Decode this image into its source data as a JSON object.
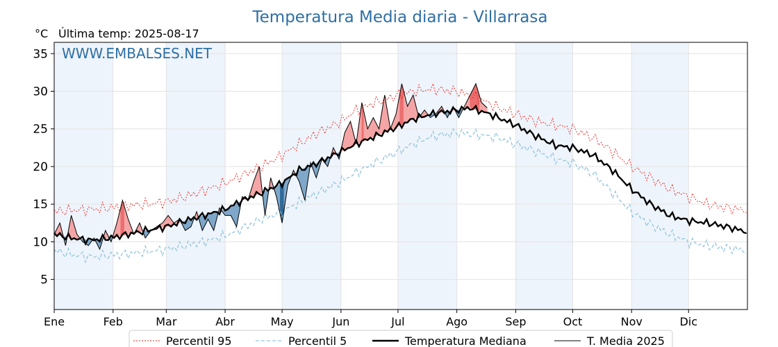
{
  "chart_data": {
    "type": "line",
    "title": "Temperatura Media diaria - Villarrasa",
    "unit": "°C",
    "subtitle": "Última temp: 2025-08-17",
    "watermark": "WWW.EMBALSES.NET",
    "ylim": [
      1,
      36.5
    ],
    "yticks": [
      5,
      10,
      15,
      20,
      25,
      30,
      35
    ],
    "x_range_days": [
      1,
      366
    ],
    "grid": true,
    "legend_position": "bottom-center",
    "months": [
      {
        "label": "Ene",
        "day": 1
      },
      {
        "label": "Feb",
        "day": 32
      },
      {
        "label": "Mar",
        "day": 60
      },
      {
        "label": "Abr",
        "day": 91
      },
      {
        "label": "May",
        "day": 121
      },
      {
        "label": "Jun",
        "day": 152
      },
      {
        "label": "Jul",
        "day": 182
      },
      {
        "label": "Ago",
        "day": 213
      },
      {
        "label": "Sep",
        "day": 244
      },
      {
        "label": "Oct",
        "day": 274
      },
      {
        "label": "Nov",
        "day": 305
      },
      {
        "label": "Dic",
        "day": 335
      }
    ],
    "colors": {
      "p95": "#e8211d",
      "p5": "#93c6dd",
      "median": "#000000",
      "current": "#000000",
      "above_fill": "#f4a5a5",
      "above_fill_strong": "#ec6e6e",
      "below_fill": "#7fa7c9",
      "below_fill_strong": "#2f6a97",
      "title": "#2e6fa4",
      "band": "#eef4fb"
    },
    "series": [
      {
        "name": "Percentil 95",
        "key": "p95",
        "points": [
          [
            1,
            14.0
          ],
          [
            10,
            14.2
          ],
          [
            20,
            14.3
          ],
          [
            30,
            14.5
          ],
          [
            40,
            14.8
          ],
          [
            50,
            15.0
          ],
          [
            60,
            15.3
          ],
          [
            70,
            16.0
          ],
          [
            80,
            16.8
          ],
          [
            91,
            17.8
          ],
          [
            100,
            18.8
          ],
          [
            110,
            20.0
          ],
          [
            121,
            21.5
          ],
          [
            130,
            23.0
          ],
          [
            140,
            24.5
          ],
          [
            152,
            26.0
          ],
          [
            160,
            27.5
          ],
          [
            170,
            28.5
          ],
          [
            182,
            29.5
          ],
          [
            190,
            30.0
          ],
          [
            200,
            30.3
          ],
          [
            213,
            30.0
          ],
          [
            225,
            29.0
          ],
          [
            235,
            27.8
          ],
          [
            244,
            27.0
          ],
          [
            255,
            26.0
          ],
          [
            265,
            25.5
          ],
          [
            274,
            25.0
          ],
          [
            285,
            23.8
          ],
          [
            295,
            22.0
          ],
          [
            305,
            20.0
          ],
          [
            315,
            18.5
          ],
          [
            325,
            17.0
          ],
          [
            335,
            16.0
          ],
          [
            345,
            15.0
          ],
          [
            355,
            14.5
          ],
          [
            366,
            14.2
          ]
        ]
      },
      {
        "name": "Percentil 5",
        "key": "p5",
        "points": [
          [
            1,
            8.8
          ],
          [
            10,
            8.3
          ],
          [
            20,
            8.0
          ],
          [
            30,
            8.2
          ],
          [
            40,
            8.4
          ],
          [
            50,
            8.7
          ],
          [
            60,
            9.0
          ],
          [
            70,
            9.5
          ],
          [
            80,
            10.0
          ],
          [
            91,
            10.8
          ],
          [
            100,
            11.8
          ],
          [
            110,
            13.0
          ],
          [
            121,
            14.0
          ],
          [
            130,
            15.2
          ],
          [
            140,
            16.5
          ],
          [
            152,
            18.0
          ],
          [
            160,
            19.2
          ],
          [
            170,
            20.5
          ],
          [
            182,
            22.0
          ],
          [
            190,
            23.0
          ],
          [
            200,
            24.0
          ],
          [
            213,
            24.5
          ],
          [
            225,
            24.2
          ],
          [
            235,
            23.8
          ],
          [
            244,
            23.0
          ],
          [
            255,
            22.0
          ],
          [
            265,
            21.0
          ],
          [
            274,
            20.5
          ],
          [
            285,
            19.0
          ],
          [
            295,
            16.5
          ],
          [
            305,
            14.0
          ],
          [
            315,
            12.3
          ],
          [
            325,
            11.0
          ],
          [
            335,
            10.0
          ],
          [
            345,
            9.5
          ],
          [
            355,
            9.2
          ],
          [
            366,
            8.8
          ]
        ]
      },
      {
        "name": "Temperatura Mediana",
        "key": "median",
        "points": [
          [
            1,
            11.0
          ],
          [
            10,
            10.5
          ],
          [
            20,
            10.2
          ],
          [
            30,
            10.5
          ],
          [
            40,
            11.0
          ],
          [
            50,
            11.5
          ],
          [
            60,
            12.0
          ],
          [
            70,
            12.8
          ],
          [
            80,
            13.5
          ],
          [
            91,
            14.3
          ],
          [
            100,
            15.5
          ],
          [
            110,
            16.5
          ],
          [
            121,
            17.8
          ],
          [
            130,
            19.5
          ],
          [
            140,
            20.5
          ],
          [
            152,
            22.0
          ],
          [
            160,
            23.0
          ],
          [
            170,
            24.0
          ],
          [
            182,
            25.3
          ],
          [
            190,
            26.3
          ],
          [
            200,
            27.0
          ],
          [
            213,
            27.5
          ],
          [
            220,
            27.8
          ],
          [
            230,
            27.0
          ],
          [
            244,
            25.5
          ],
          [
            255,
            24.0
          ],
          [
            265,
            22.8
          ],
          [
            274,
            22.5
          ],
          [
            285,
            21.5
          ],
          [
            295,
            19.5
          ],
          [
            305,
            17.0
          ],
          [
            315,
            15.0
          ],
          [
            325,
            13.5
          ],
          [
            335,
            12.8
          ],
          [
            345,
            12.5
          ],
          [
            355,
            12.0
          ],
          [
            366,
            11.3
          ]
        ]
      },
      {
        "name": "T. Media 2025",
        "key": "current",
        "points": [
          [
            1,
            11.0
          ],
          [
            4,
            12.5
          ],
          [
            7,
            9.5
          ],
          [
            10,
            13.5
          ],
          [
            13,
            11.0
          ],
          [
            16,
            10.0
          ],
          [
            19,
            9.5
          ],
          [
            22,
            10.5
          ],
          [
            25,
            9.0
          ],
          [
            28,
            11.5
          ],
          [
            31,
            10.0
          ],
          [
            34,
            12.5
          ],
          [
            37,
            15.5
          ],
          [
            40,
            13.0
          ],
          [
            43,
            11.0
          ],
          [
            46,
            12.5
          ],
          [
            49,
            10.5
          ],
          [
            52,
            11.5
          ],
          [
            55,
            12.0
          ],
          [
            58,
            12.5
          ],
          [
            61,
            13.5
          ],
          [
            64,
            12.5
          ],
          [
            67,
            13.0
          ],
          [
            70,
            11.5
          ],
          [
            73,
            12.0
          ],
          [
            76,
            14.0
          ],
          [
            79,
            11.5
          ],
          [
            82,
            13.0
          ],
          [
            85,
            11.5
          ],
          [
            88,
            14.5
          ],
          [
            91,
            13.5
          ],
          [
            94,
            13.5
          ],
          [
            97,
            12.0
          ],
          [
            100,
            16.0
          ],
          [
            103,
            15.5
          ],
          [
            106,
            18.0
          ],
          [
            109,
            20.0
          ],
          [
            112,
            13.5
          ],
          [
            115,
            18.5
          ],
          [
            118,
            16.0
          ],
          [
            121,
            12.5
          ],
          [
            124,
            17.5
          ],
          [
            127,
            19.5
          ],
          [
            130,
            18.0
          ],
          [
            133,
            15.5
          ],
          [
            136,
            20.5
          ],
          [
            139,
            18.5
          ],
          [
            142,
            21.0
          ],
          [
            145,
            20.0
          ],
          [
            148,
            22.5
          ],
          [
            151,
            21.0
          ],
          [
            154,
            24.5
          ],
          [
            157,
            26.0
          ],
          [
            160,
            23.0
          ],
          [
            163,
            28.5
          ],
          [
            166,
            25.0
          ],
          [
            169,
            26.5
          ],
          [
            172,
            25.0
          ],
          [
            175,
            29.5
          ],
          [
            178,
            25.0
          ],
          [
            181,
            27.0
          ],
          [
            184,
            31.0
          ],
          [
            187,
            28.0
          ],
          [
            190,
            29.5
          ],
          [
            193,
            26.5
          ],
          [
            196,
            27.5
          ],
          [
            199,
            26.5
          ],
          [
            202,
            27.0
          ],
          [
            205,
            28.0
          ],
          [
            208,
            26.5
          ],
          [
            211,
            28.0
          ],
          [
            214,
            26.5
          ],
          [
            217,
            28.0
          ],
          [
            220,
            29.5
          ],
          [
            223,
            31.0
          ],
          [
            226,
            28.5
          ],
          [
            229,
            27.8
          ]
        ]
      }
    ],
    "legend": [
      {
        "label": "Percentil 95",
        "key": "p95"
      },
      {
        "label": "Percentil 5",
        "key": "p5"
      },
      {
        "label": "Temperatura Mediana",
        "key": "median"
      },
      {
        "label": "T. Media 2025",
        "key": "current"
      }
    ]
  }
}
